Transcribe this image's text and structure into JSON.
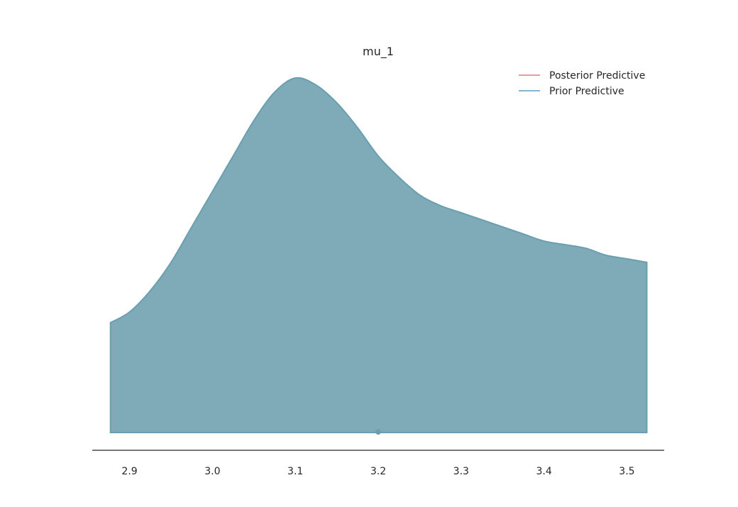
{
  "chart_data": {
    "type": "area",
    "title": "mu_1",
    "xlabel": "",
    "ylabel": "",
    "xlim": [
      2.855,
      3.545
    ],
    "ylim": [
      0,
      1.0
    ],
    "grid": false,
    "legend": {
      "placement": "top-right",
      "entries": [
        {
          "name": "Posterior Predictive",
          "color": "#e07b7b"
        },
        {
          "name": "Prior Predictive",
          "color": "#5b9bbd"
        }
      ]
    },
    "x_ticks": [
      2.9,
      3.0,
      3.1,
      3.2,
      3.3,
      3.4,
      3.5
    ],
    "x_tick_labels": [
      "2.9",
      "3.0",
      "3.1",
      "3.2",
      "3.3",
      "3.4",
      "3.5"
    ],
    "fill_color": "#7faab8",
    "line_color": "#6a9fb0",
    "series": [
      {
        "name": "Prior Predictive",
        "x": [
          2.877,
          2.9,
          2.925,
          2.95,
          2.975,
          3.0,
          3.025,
          3.05,
          3.075,
          3.1,
          3.125,
          3.15,
          3.175,
          3.2,
          3.225,
          3.25,
          3.275,
          3.3,
          3.325,
          3.35,
          3.375,
          3.4,
          3.425,
          3.45,
          3.475,
          3.5,
          3.524
        ],
        "y": [
          0.31,
          0.34,
          0.4,
          0.48,
          0.58,
          0.68,
          0.78,
          0.88,
          0.96,
          1.0,
          0.98,
          0.93,
          0.86,
          0.78,
          0.72,
          0.67,
          0.64,
          0.62,
          0.6,
          0.58,
          0.56,
          0.54,
          0.53,
          0.52,
          0.5,
          0.49,
          0.48
        ]
      }
    ],
    "point_marker": {
      "x": 3.2,
      "color": "#6a9fb0"
    }
  }
}
